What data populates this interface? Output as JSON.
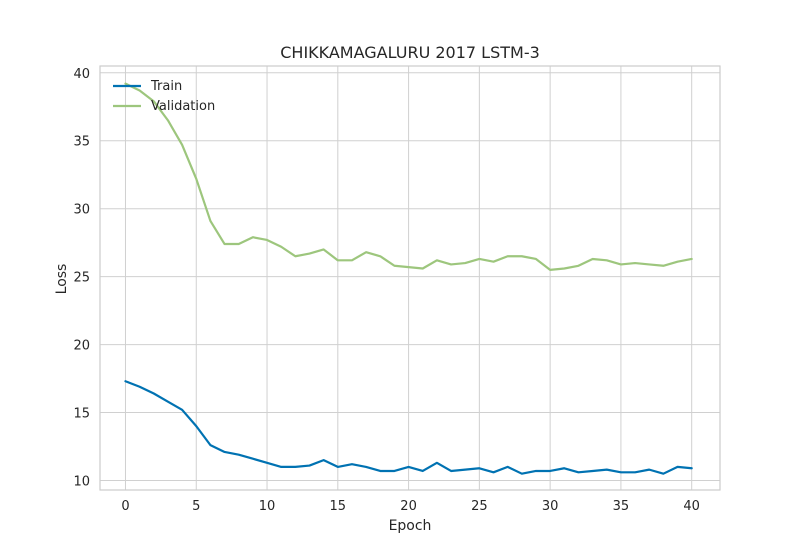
{
  "chart_data": {
    "type": "line",
    "title": "CHIKKAMAGALURU 2017 LSTM-3",
    "xlabel": "Epoch",
    "ylabel": "Loss",
    "xlim": [
      -1.8,
      42
    ],
    "ylim": [
      9.3,
      40.5
    ],
    "xticks": [
      0,
      5,
      10,
      15,
      20,
      25,
      30,
      35,
      40
    ],
    "yticks": [
      10,
      15,
      20,
      25,
      30,
      35,
      40
    ],
    "grid": true,
    "legend_position": "upper-left",
    "x": [
      0,
      1,
      2,
      3,
      4,
      5,
      6,
      7,
      8,
      9,
      10,
      11,
      12,
      13,
      14,
      15,
      16,
      17,
      18,
      19,
      20,
      21,
      22,
      23,
      24,
      25,
      26,
      27,
      28,
      29,
      30,
      31,
      32,
      33,
      34,
      35,
      36,
      37,
      38,
      39,
      40
    ],
    "series": [
      {
        "name": "Train",
        "color": "#0072b2",
        "values": [
          17.3,
          16.9,
          16.4,
          15.8,
          15.2,
          14.0,
          12.6,
          12.1,
          11.9,
          11.6,
          11.3,
          11.0,
          11.0,
          11.1,
          11.5,
          11.0,
          11.2,
          11.0,
          10.7,
          10.7,
          11.0,
          10.7,
          11.3,
          10.7,
          10.8,
          10.9,
          10.6,
          11.0,
          10.5,
          10.7,
          10.7,
          10.9,
          10.6,
          10.7,
          10.8,
          10.6,
          10.6,
          10.8,
          10.5,
          11.0,
          10.9
        ]
      },
      {
        "name": "Validation",
        "color": "#9dc67d",
        "values": [
          39.2,
          38.7,
          37.9,
          36.5,
          34.7,
          32.2,
          29.1,
          27.4,
          27.4,
          27.9,
          27.7,
          27.2,
          26.5,
          26.7,
          27.0,
          26.2,
          26.2,
          26.8,
          26.5,
          25.8,
          25.7,
          25.6,
          26.2,
          25.9,
          26.0,
          26.3,
          26.1,
          26.5,
          26.5,
          26.3,
          25.5,
          25.6,
          25.8,
          26.3,
          26.2,
          25.9,
          26.0,
          25.9,
          25.8,
          26.1,
          26.3
        ]
      }
    ]
  }
}
